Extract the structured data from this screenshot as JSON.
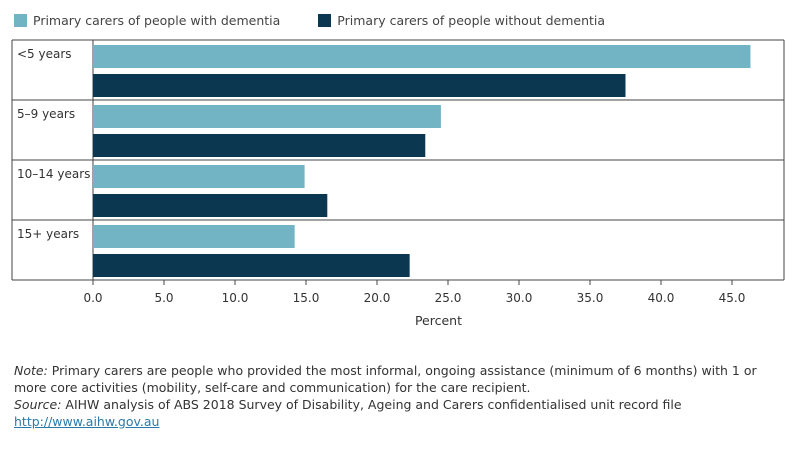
{
  "chart_data": {
    "type": "bar",
    "orientation": "horizontal",
    "categories": [
      "<5 years",
      "5–9 years",
      "10–14 years",
      "15+ years"
    ],
    "series": [
      {
        "name": "Primary carers of people with dementia",
        "color": "#72b3c4",
        "values": [
          46.3,
          24.5,
          14.9,
          14.2
        ]
      },
      {
        "name": "Primary carers of people without dementia",
        "color": "#0b3850",
        "values": [
          37.5,
          23.4,
          16.5,
          22.3
        ]
      }
    ],
    "xlabel": "Percent",
    "xlim": [
      0,
      49
    ],
    "ticks": [
      0,
      5,
      10,
      15,
      20,
      25,
      30,
      35,
      40,
      45
    ],
    "tick_labels": [
      "0.0",
      "5.0",
      "10.0",
      "15.0",
      "20.0",
      "25.0",
      "30.0",
      "35.0",
      "40.0",
      "45.0"
    ],
    "legend": "top-left",
    "grid": false
  },
  "notes": {
    "note_label": "Note:",
    "note_text": " Primary carers are people who provided the most informal, ongoing assistance (minimum of 6 months) with 1 or more core activities (mobility, self-care and communication) for the care recipient.",
    "source_label": "Source:",
    "source_text": " AIHW analysis of ABS 2018 Survey of Disability, Ageing and Carers confidentialised unit record file",
    "link": "http://www.aihw.gov.au"
  }
}
